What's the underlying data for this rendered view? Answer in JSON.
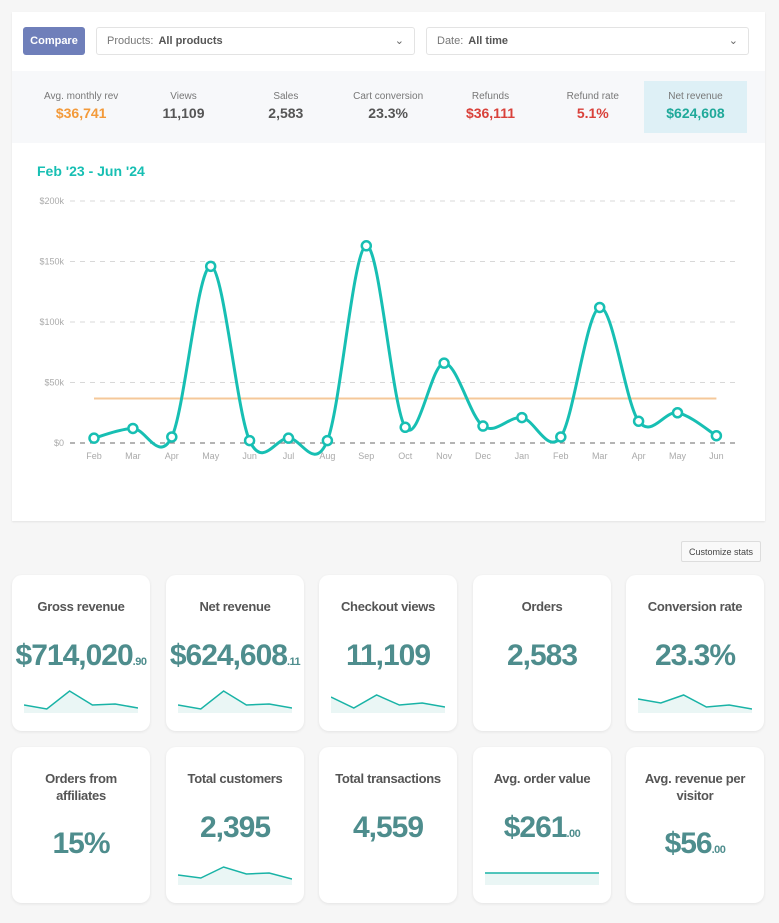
{
  "toolbar": {
    "compare_label": "Compare",
    "products_label": "Products:",
    "products_value": "All products",
    "date_label": "Date:",
    "date_value": "All time"
  },
  "stats": [
    {
      "label": "Avg. monthly rev",
      "value": "$36,741",
      "color": "#f39a3a"
    },
    {
      "label": "Views",
      "value": "11,109",
      "color": "#555555"
    },
    {
      "label": "Sales",
      "value": "2,583",
      "color": "#555555"
    },
    {
      "label": "Cart conversion",
      "value": "23.3%",
      "color": "#555555"
    },
    {
      "label": "Refunds",
      "value": "$36,111",
      "color": "#d9413a"
    },
    {
      "label": "Refund rate",
      "value": "5.1%",
      "color": "#d9413a"
    },
    {
      "label": "Net revenue",
      "value": "$624,608",
      "color": "#1fa99a"
    }
  ],
  "chart_data": {
    "type": "line",
    "title": "Feb '23 - Jun '24",
    "categories": [
      "Feb",
      "Mar",
      "Apr",
      "May",
      "Jun",
      "Jul",
      "Aug",
      "Sep",
      "Oct",
      "Nov",
      "Dec",
      "Jan",
      "Feb",
      "Mar",
      "Apr",
      "May",
      "Jun"
    ],
    "series": [
      {
        "name": "Net revenue",
        "values": [
          4000,
          12000,
          5000,
          146000,
          2000,
          4000,
          2000,
          163000,
          13000,
          66000,
          14000,
          21000,
          5000,
          112000,
          18000,
          25000,
          6000
        ],
        "color": "#17bfb3"
      }
    ],
    "average": 36741,
    "average_color": "#f5c89a",
    "yticks": [
      {
        "v": 0,
        "label": "$0"
      },
      {
        "v": 50000,
        "label": "$50k"
      },
      {
        "v": 100000,
        "label": "$100k"
      },
      {
        "v": 150000,
        "label": "$150k"
      },
      {
        "v": 200000,
        "label": "$200k"
      }
    ],
    "ylim": [
      0,
      200000
    ],
    "grid": true
  },
  "customize_label": "Customize stats",
  "cards": [
    {
      "title": "Gross revenue",
      "value": "$714,020",
      "cents": ".90",
      "spark": [
        3,
        1,
        10,
        3,
        3.5,
        1.5
      ]
    },
    {
      "title": "Net revenue",
      "value": "$624,608",
      "cents": ".11",
      "spark": [
        3,
        1,
        10,
        3,
        3.5,
        1.5
      ]
    },
    {
      "title": "Checkout views",
      "value": "11,109",
      "cents": "",
      "spark": [
        7,
        1.5,
        8,
        3,
        4,
        2
      ]
    },
    {
      "title": "Orders",
      "value": "2,583",
      "cents": "",
      "spark": null
    },
    {
      "title": "Conversion rate",
      "value": "23.3%",
      "cents": "",
      "spark": [
        6,
        4,
        8,
        2,
        3,
        1
      ]
    },
    {
      "title": "Orders from affiliates",
      "value": "15%",
      "cents": "",
      "spark": null
    },
    {
      "title": "Total customers",
      "value": "2,395",
      "cents": "",
      "spark": [
        4,
        2.5,
        8,
        4.5,
        5,
        2
      ]
    },
    {
      "title": "Total transactions",
      "value": "4,559",
      "cents": "",
      "spark": null
    },
    {
      "title": "Avg. order value",
      "value": "$261",
      "cents": ".00",
      "spark": [
        5,
        5,
        5,
        5,
        5,
        5
      ]
    },
    {
      "title": "Avg. revenue per visitor",
      "value": "$56",
      "cents": ".00",
      "spark": null
    }
  ]
}
